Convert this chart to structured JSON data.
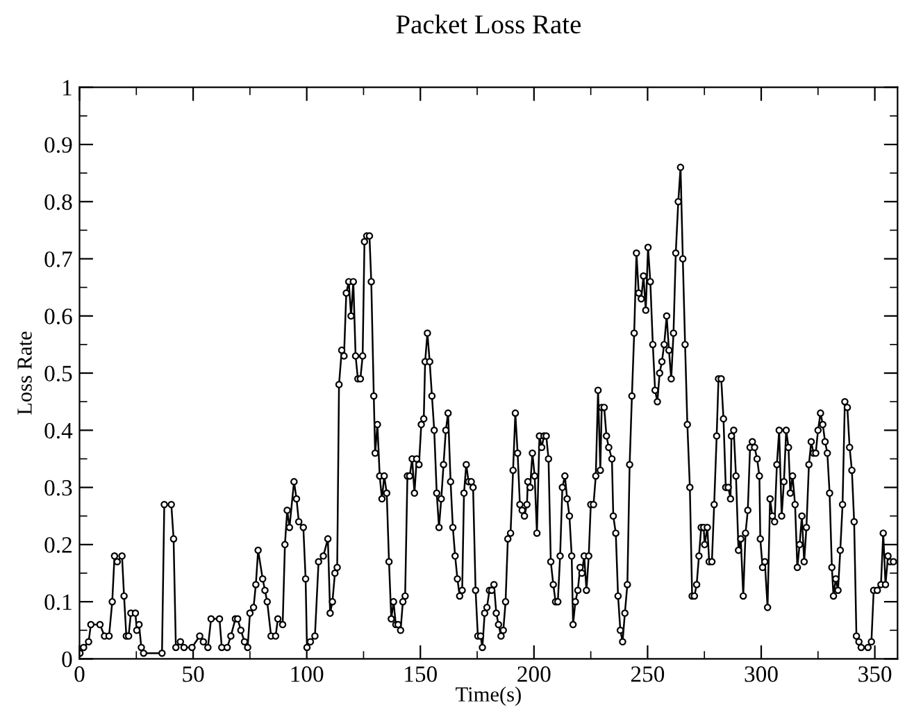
{
  "chart_data": {
    "type": "line",
    "title": "Packet Loss Rate",
    "xlabel": "Time(s)",
    "ylabel": "Loss Rate",
    "xlim": [
      0,
      360
    ],
    "xticks": [
      0,
      50,
      100,
      150,
      200,
      250,
      300,
      350
    ],
    "ylim": [
      0,
      1
    ],
    "yticks": [
      0,
      0.1,
      0.2,
      0.3,
      0.4,
      0.5,
      0.6,
      0.7,
      0.8,
      0.9,
      1
    ],
    "grid": false,
    "legend": false,
    "marker": "circle",
    "line_style": "solid",
    "series": [
      {
        "color": "#000000",
        "x": [
          0.2,
          1.8,
          4,
          5,
          9,
          11,
          13,
          14.4,
          15.4,
          16.6,
          18.7,
          19.6,
          20.6,
          21.6,
          22.6,
          24.6,
          25.2,
          26.2,
          27.2,
          28.2,
          36.3,
          37.3,
          40.4,
          41.4,
          42.4,
          44.4,
          46,
          49.5,
          52.9,
          54.5,
          56.5,
          57.9,
          61.6,
          62.6,
          65,
          66.6,
          68.6,
          69.6,
          71,
          72.6,
          74,
          75,
          76.6,
          77.6,
          78.6,
          80.6,
          81.6,
          82.6,
          84.3,
          86.3,
          87.3,
          89.4,
          90.4,
          91.4,
          92.4,
          94.4,
          95.5,
          96.5,
          98.5,
          99.5,
          100.1,
          101.6,
          103.6,
          105.2,
          107.3,
          109.3,
          110.3,
          111.3,
          112.4,
          113.4,
          114.2,
          115.4,
          116.4,
          117.4,
          118.5,
          119.5,
          120.5,
          121.5,
          122.5,
          123.6,
          124.6,
          125.4,
          126.4,
          127.6,
          128.4,
          129.5,
          130.1,
          131.1,
          132.1,
          133.1,
          134.1,
          135.2,
          136.2,
          137.2,
          138.2,
          139.2,
          140.2,
          141.3,
          142.3,
          143.3,
          144.3,
          145.3,
          146.4,
          147.4,
          148.4,
          149.4,
          150.4,
          151.5,
          152.1,
          153.1,
          154.1,
          155.1,
          156.1,
          157.2,
          158.2,
          159.2,
          160.2,
          161.2,
          162.2,
          163.3,
          164.3,
          165.3,
          166.3,
          167.3,
          168.4,
          169.2,
          170.2,
          171.2,
          172.4,
          173.2,
          174.3,
          175.3,
          176.5,
          177.3,
          178.3,
          179.3,
          180.4,
          181.4,
          182.4,
          183.4,
          184.4,
          185.5,
          186.5,
          187.5,
          188.5,
          189.7,
          190.8,
          191.8,
          192.8,
          193.8,
          194.8,
          195.8,
          196.9,
          197.3,
          198.3,
          199.3,
          200.3,
          201.3,
          202.4,
          203.4,
          204.4,
          205.4,
          206.4,
          207.4,
          208.5,
          209.5,
          210.5,
          211.5,
          212.5,
          213.6,
          214.6,
          215.6,
          216.6,
          217.2,
          218.2,
          219.3,
          220.3,
          221.1,
          222.1,
          223.1,
          224.1,
          225.0,
          226.2,
          227.2,
          228.2,
          229.2,
          229.8,
          230.9,
          231.9,
          232.9,
          234.3,
          234.9,
          236.0,
          237.0,
          238.0,
          239.0,
          240.0,
          241.1,
          242.1,
          243.1,
          244.1,
          245.1,
          246.1,
          247.2,
          248.2,
          249.2,
          250.2,
          251.2,
          252.3,
          253.3,
          254.3,
          255.3,
          256.3,
          257.3,
          258.4,
          259.4,
          260.4,
          261.4,
          262.4,
          263.5,
          264.5,
          265.5,
          266.5,
          267.5,
          268.6,
          269.6,
          270.6,
          271.6,
          272.6,
          273.6,
          274.7,
          275.1,
          276.3,
          277.1,
          278.3,
          279.3,
          280.4,
          281.2,
          282.4,
          283.4,
          284.4,
          285.5,
          286.5,
          286.9,
          287.9,
          288.9,
          290.0,
          291.0,
          292.1,
          293.1,
          294.1,
          295.1,
          296.1,
          297.1,
          298.2,
          299.2,
          299.6,
          300.6,
          301.6,
          302.8,
          303.9,
          304.9,
          305.9,
          306.9,
          307.9,
          309.0,
          310.0,
          311.0,
          312.0,
          312.8,
          313.8,
          314.9,
          315.9,
          316.9,
          317.9,
          318.9,
          319.9,
          321.0,
          322.0,
          323.0,
          324.0,
          325.0,
          326.1,
          327.1,
          328.1,
          329.1,
          330.1,
          331.1,
          331.8,
          332.8,
          333.8,
          334.8,
          335.8,
          336.8,
          337.9,
          338.9,
          339.9,
          340.9,
          341.9,
          343.0,
          344.0,
          347.0,
          348.5,
          349.5,
          351.1,
          352.7,
          353.7,
          354.7,
          355.8,
          356.8,
          358.2
        ],
        "values": [
          0.01,
          0.02,
          0.03,
          0.06,
          0.06,
          0.04,
          0.04,
          0.1,
          0.18,
          0.17,
          0.18,
          0.11,
          0.04,
          0.04,
          0.08,
          0.08,
          0.05,
          0.06,
          0.02,
          0.01,
          0.01,
          0.27,
          0.27,
          0.21,
          0.02,
          0.03,
          0.02,
          0.02,
          0.04,
          0.03,
          0.02,
          0.07,
          0.07,
          0.02,
          0.02,
          0.04,
          0.07,
          0.07,
          0.05,
          0.03,
          0.02,
          0.08,
          0.09,
          0.13,
          0.19,
          0.14,
          0.12,
          0.1,
          0.04,
          0.04,
          0.07,
          0.06,
          0.2,
          0.26,
          0.23,
          0.31,
          0.28,
          0.24,
          0.23,
          0.14,
          0.02,
          0.03,
          0.04,
          0.17,
          0.18,
          0.21,
          0.08,
          0.1,
          0.15,
          0.16,
          0.48,
          0.54,
          0.53,
          0.64,
          0.66,
          0.6,
          0.66,
          0.53,
          0.49,
          0.49,
          0.53,
          0.73,
          0.74,
          0.74,
          0.66,
          0.46,
          0.36,
          0.41,
          0.32,
          0.28,
          0.32,
          0.29,
          0.17,
          0.07,
          0.1,
          0.06,
          0.06,
          0.05,
          0.1,
          0.11,
          0.32,
          0.32,
          0.35,
          0.29,
          0.35,
          0.34,
          0.41,
          0.42,
          0.52,
          0.57,
          0.52,
          0.46,
          0.4,
          0.29,
          0.23,
          0.28,
          0.34,
          0.4,
          0.43,
          0.31,
          0.23,
          0.18,
          0.14,
          0.11,
          0.12,
          0.29,
          0.34,
          0.31,
          0.31,
          0.3,
          0.12,
          0.04,
          0.04,
          0.02,
          0.08,
          0.09,
          0.12,
          0.12,
          0.13,
          0.08,
          0.06,
          0.04,
          0.05,
          0.1,
          0.21,
          0.22,
          0.33,
          0.43,
          0.36,
          0.27,
          0.26,
          0.25,
          0.27,
          0.31,
          0.3,
          0.36,
          0.32,
          0.22,
          0.39,
          0.37,
          0.39,
          0.39,
          0.35,
          0.17,
          0.13,
          0.1,
          0.1,
          0.18,
          0.3,
          0.32,
          0.28,
          0.25,
          0.18,
          0.06,
          0.1,
          0.12,
          0.16,
          0.15,
          0.18,
          0.12,
          0.18,
          0.27,
          0.27,
          0.32,
          0.47,
          0.33,
          0.44,
          0.44,
          0.39,
          0.37,
          0.35,
          0.25,
          0.22,
          0.11,
          0.05,
          0.03,
          0.08,
          0.13,
          0.34,
          0.46,
          0.57,
          0.71,
          0.64,
          0.63,
          0.67,
          0.61,
          0.72,
          0.66,
          0.55,
          0.47,
          0.45,
          0.5,
          0.52,
          0.55,
          0.6,
          0.54,
          0.49,
          0.57,
          0.71,
          0.8,
          0.86,
          0.7,
          0.55,
          0.41,
          0.3,
          0.11,
          0.11,
          0.13,
          0.18,
          0.23,
          0.23,
          0.2,
          0.23,
          0.17,
          0.17,
          0.27,
          0.39,
          0.49,
          0.49,
          0.42,
          0.3,
          0.3,
          0.28,
          0.39,
          0.4,
          0.32,
          0.19,
          0.21,
          0.11,
          0.22,
          0.26,
          0.37,
          0.38,
          0.37,
          0.35,
          0.32,
          0.21,
          0.16,
          0.17,
          0.09,
          0.28,
          0.25,
          0.24,
          0.34,
          0.4,
          0.25,
          0.31,
          0.4,
          0.37,
          0.29,
          0.32,
          0.27,
          0.16,
          0.2,
          0.25,
          0.17,
          0.23,
          0.34,
          0.38,
          0.36,
          0.36,
          0.4,
          0.43,
          0.41,
          0.38,
          0.36,
          0.29,
          0.16,
          0.11,
          0.14,
          0.12,
          0.19,
          0.27,
          0.45,
          0.44,
          0.37,
          0.33,
          0.24,
          0.04,
          0.03,
          0.02,
          0.02,
          0.03,
          0.12,
          0.12,
          0.13,
          0.22,
          0.13,
          0.18,
          0.17,
          0.17
        ]
      }
    ]
  }
}
